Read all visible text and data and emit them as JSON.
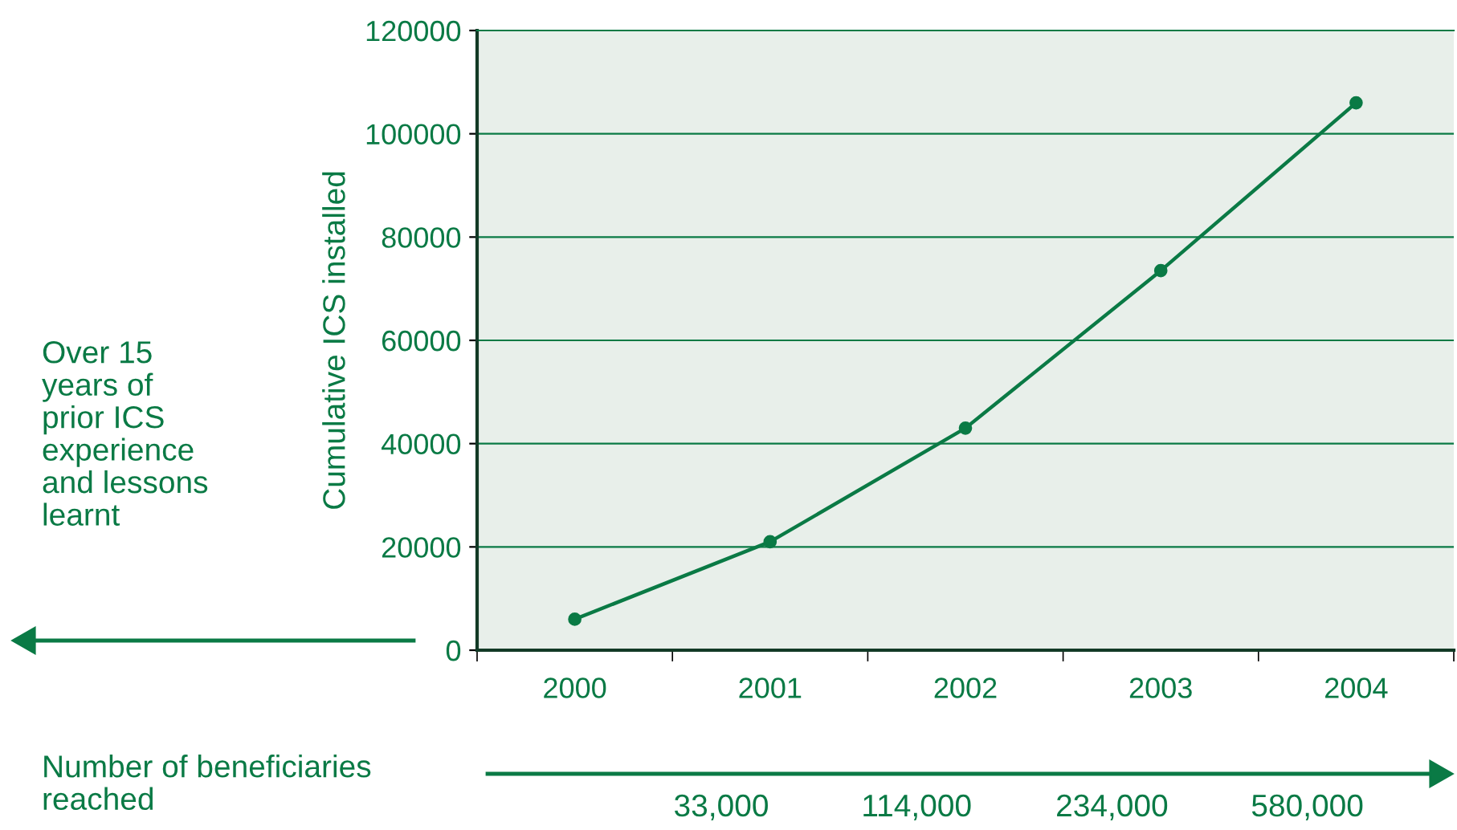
{
  "chart_data": {
    "type": "line",
    "ylabel": "Cumulative ICS installed",
    "categories": [
      "2000",
      "2001",
      "2002",
      "2003",
      "2004"
    ],
    "series": [
      {
        "color": "#0a7a45",
        "values": [
          6000,
          21000,
          43000,
          73500,
          106000
        ]
      }
    ],
    "ylim": [
      0,
      120000
    ],
    "yticks": [
      0,
      20000,
      40000,
      60000,
      80000,
      100000,
      120000
    ],
    "grid": "y",
    "marker": "circle",
    "line_style": "solid",
    "legend": false,
    "annotations": [
      "Over 15\nyears of\nprior ICS\nexperience\nand lessons\nlearnt",
      "Number of beneficiaries\nreached",
      "33,000",
      "114,000",
      "234,000",
      "580,000"
    ]
  }
}
